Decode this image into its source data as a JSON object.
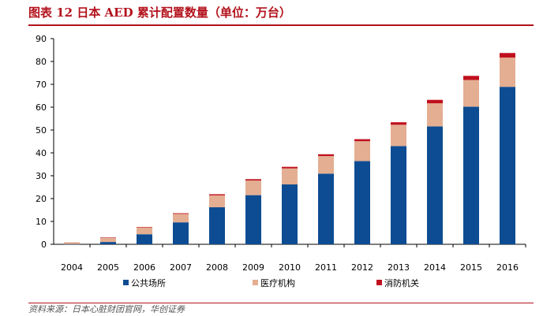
{
  "header": {
    "title": "图表 12   日本 AED 累计配置数量（单位：万台）"
  },
  "footer": {
    "source": "资料来源：日本心脏财团官网，华创证券"
  },
  "colors": {
    "title": "#b3121c",
    "series": [
      "#0d4c92",
      "#e4ae92",
      "#c0101e"
    ]
  },
  "chart_data": {
    "type": "bar",
    "stacked": true,
    "categories": [
      "2004",
      "2005",
      "2006",
      "2007",
      "2008",
      "2009",
      "2010",
      "2011",
      "2012",
      "2013",
      "2014",
      "2015",
      "2016"
    ],
    "series": [
      {
        "name": "公共场所",
        "values": [
          0.1,
          1.0,
          4.4,
          9.6,
          16.2,
          21.5,
          26.2,
          30.9,
          36.4,
          43.0,
          51.6,
          60.2,
          68.9
        ]
      },
      {
        "name": "医疗机构",
        "values": [
          0.8,
          1.9,
          3.0,
          3.7,
          5.2,
          6.4,
          7.0,
          7.7,
          8.7,
          9.3,
          10.1,
          11.7,
          12.8
        ]
      },
      {
        "name": "消防机关",
        "values": [
          0.0,
          0.1,
          0.2,
          0.3,
          0.5,
          0.6,
          0.7,
          0.8,
          0.9,
          1.1,
          1.5,
          1.8,
          2.0
        ]
      }
    ],
    "ylim": [
      0,
      90
    ],
    "yticks": [
      "0",
      "10",
      "20",
      "30",
      "40",
      "50",
      "60",
      "70",
      "80",
      "90"
    ],
    "grid": false,
    "legend_position": "bottom"
  }
}
